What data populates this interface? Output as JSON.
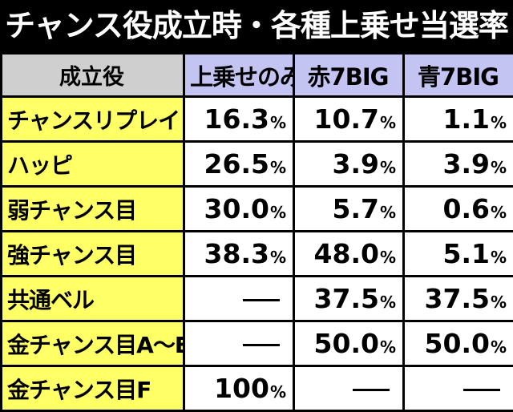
{
  "title": "チャンス役成立時・各種上乗せ当選率",
  "table": {
    "headers": [
      "成立役",
      "上乗せのみ",
      "赤7BIG",
      "青7BIG"
    ],
    "percent_sign": "%",
    "dash_symbol": "—",
    "rows": [
      {
        "role": "チャンスリプレイ",
        "values": [
          "16.3",
          "10.7",
          "1.1"
        ]
      },
      {
        "role": "ハッピ",
        "values": [
          "26.5",
          "3.9",
          "3.9"
        ]
      },
      {
        "role": "弱チャンス目",
        "values": [
          "30.0",
          "5.7",
          "0.6"
        ]
      },
      {
        "role": "強チャンス目",
        "values": [
          "38.3",
          "48.0",
          "5.1"
        ]
      },
      {
        "role": "共通ベル",
        "values": [
          "—",
          "37.5",
          "37.5"
        ]
      },
      {
        "role": "金チャンス目A～E",
        "values": [
          "—",
          "50.0",
          "50.0"
        ]
      },
      {
        "role": "金チャンス目F",
        "values": [
          "100",
          "—",
          "—"
        ]
      }
    ]
  }
}
